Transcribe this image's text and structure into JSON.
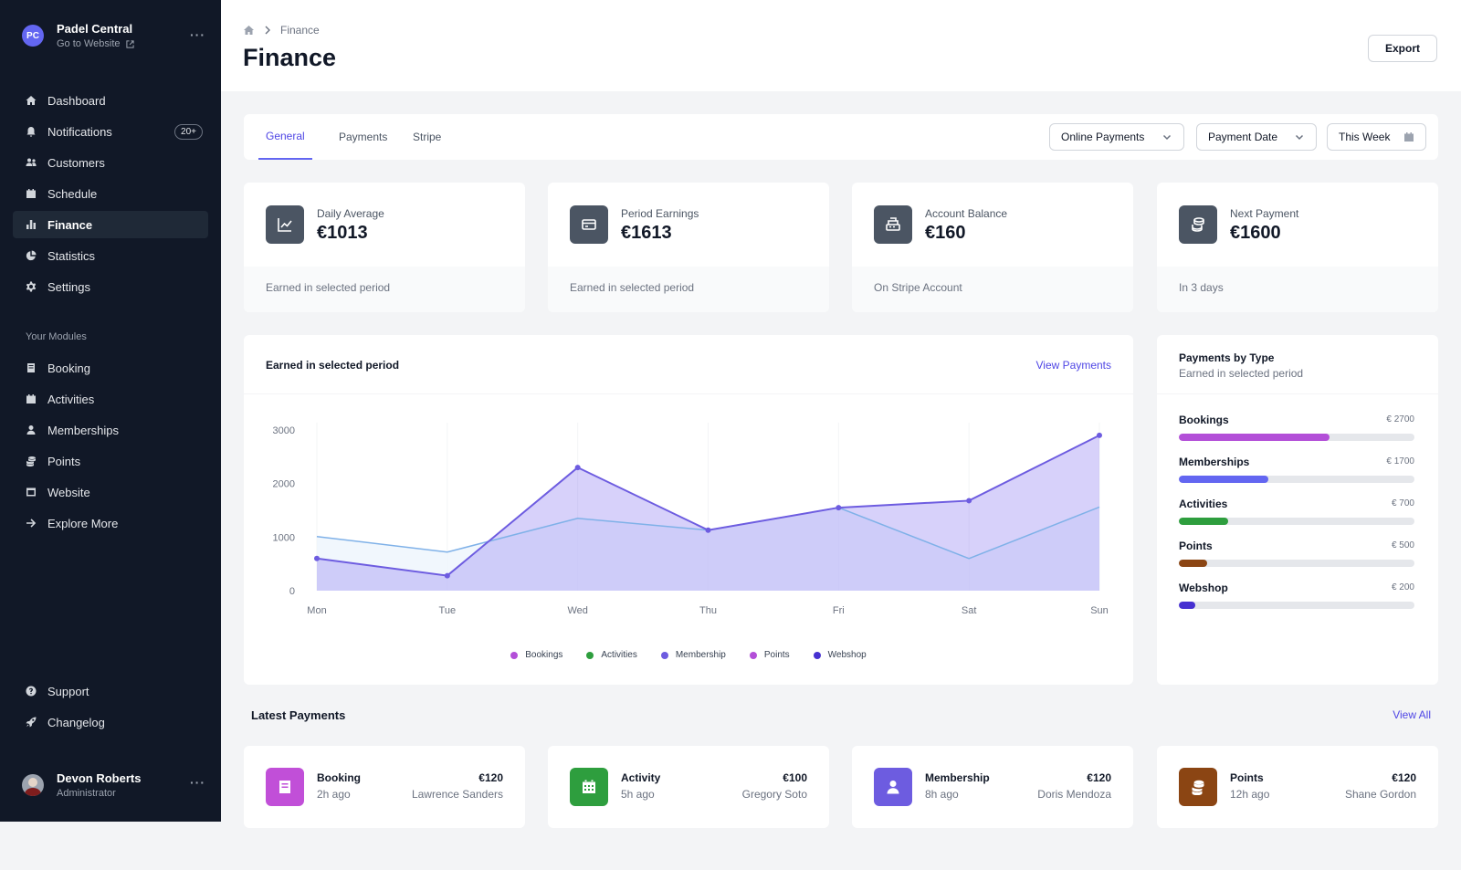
{
  "org": {
    "initials": "PC",
    "name": "Padel Central",
    "link": "Go to Website"
  },
  "nav": {
    "main": [
      {
        "label": "Dashboard",
        "icon": "home-icon"
      },
      {
        "label": "Notifications",
        "icon": "bell-icon",
        "badge": "20+"
      },
      {
        "label": "Customers",
        "icon": "users-icon"
      },
      {
        "label": "Schedule",
        "icon": "calendar-icon"
      },
      {
        "label": "Finance",
        "icon": "bar-chart-icon",
        "active": true
      },
      {
        "label": "Statistics",
        "icon": "pie-chart-icon"
      },
      {
        "label": "Settings",
        "icon": "gear-icon"
      }
    ],
    "modules_heading": "Your Modules",
    "modules": [
      {
        "label": "Booking",
        "icon": "book-icon"
      },
      {
        "label": "Activities",
        "icon": "calendar-icon"
      },
      {
        "label": "Memberships",
        "icon": "user-icon"
      },
      {
        "label": "Points",
        "icon": "coins-icon"
      },
      {
        "label": "Website",
        "icon": "window-icon"
      },
      {
        "label": "Explore More",
        "icon": "arrow-right-icon"
      }
    ],
    "footer": [
      {
        "label": "Support",
        "icon": "help-icon"
      },
      {
        "label": "Changelog",
        "icon": "rocket-icon"
      }
    ]
  },
  "user": {
    "name": "Devon Roberts",
    "role": "Administrator"
  },
  "header": {
    "breadcrumb": "Finance",
    "title": "Finance",
    "export_label": "Export"
  },
  "tabs": [
    {
      "label": "General",
      "active": true
    },
    {
      "label": "Payments"
    },
    {
      "label": "Stripe"
    }
  ],
  "filters": {
    "type": "Online Payments",
    "date_field": "Payment Date",
    "period": "This Week"
  },
  "stats": [
    {
      "label": "Daily Average",
      "value": "€1013",
      "note": "Earned in selected period",
      "icon": "trend-icon"
    },
    {
      "label": "Period Earnings",
      "value": "€1613",
      "note": "Earned in selected period",
      "icon": "credit-card-icon"
    },
    {
      "label": "Account Balance",
      "value": "€160",
      "note": "On Stripe Account",
      "icon": "cash-register-icon"
    },
    {
      "label": "Next Payment",
      "value": "€1600",
      "note": "In 3 days",
      "icon": "coins-icon"
    }
  ],
  "earned_card": {
    "title": "Earned in selected period",
    "link": "View Payments"
  },
  "chart_data": {
    "type": "area",
    "categories": [
      "Mon",
      "Tue",
      "Wed",
      "Thu",
      "Fri",
      "Sat",
      "Sun"
    ],
    "y_ticks": [
      0,
      1000,
      2000,
      3000
    ],
    "ylim": [
      0,
      3000
    ],
    "series": [
      {
        "values": [
          600,
          280,
          2300,
          1130,
          1550,
          1680,
          2900
        ],
        "color": "#6d5ce0"
      },
      {
        "values": [
          1010,
          720,
          1350,
          1130,
          1550,
          600,
          1560
        ],
        "color": "#7fb1e8"
      }
    ],
    "legend": [
      {
        "name": "Bookings",
        "color": "#b34fd8"
      },
      {
        "name": "Activities",
        "color": "#2e9e3e"
      },
      {
        "name": "Membership",
        "color": "#6d5ce0"
      },
      {
        "name": "Points",
        "color": "#b34fd8"
      },
      {
        "name": "Webshop",
        "color": "#4630d1"
      }
    ]
  },
  "payments_by_type": {
    "title": "Payments by Type",
    "subtitle": "Earned in selected period",
    "items": [
      {
        "name": "Bookings",
        "amount": "€ 2700",
        "fraction": 0.64,
        "color": "#b34fd8"
      },
      {
        "name": "Memberships",
        "amount": "€ 1700",
        "fraction": 0.38,
        "color": "#6366f1"
      },
      {
        "name": "Activities",
        "amount": "€ 700",
        "fraction": 0.21,
        "color": "#2e9e3e"
      },
      {
        "name": "Points",
        "amount": "€ 500",
        "fraction": 0.12,
        "color": "#8b4513"
      },
      {
        "name": "Webshop",
        "amount": "€ 200",
        "fraction": 0.07,
        "color": "#4630d1"
      }
    ]
  },
  "latest": {
    "title": "Latest Payments",
    "link": "View All",
    "items": [
      {
        "type": "Booking",
        "time": "2h ago",
        "amount": "€120",
        "name": "Lawrence Sanders",
        "color": "#c14fd8",
        "icon": "book-icon"
      },
      {
        "type": "Activity",
        "time": "5h ago",
        "amount": "€100",
        "name": "Gregory Soto",
        "color": "#2e9e3e",
        "icon": "calendar-icon"
      },
      {
        "type": "Membership",
        "time": "8h ago",
        "amount": "€120",
        "name": "Doris Mendoza",
        "color": "#6d5ce0",
        "icon": "user-icon"
      },
      {
        "type": "Points",
        "time": "12h ago",
        "amount": "€120",
        "name": "Shane Gordon",
        "color": "#8b4513",
        "icon": "coins-icon"
      }
    ]
  }
}
